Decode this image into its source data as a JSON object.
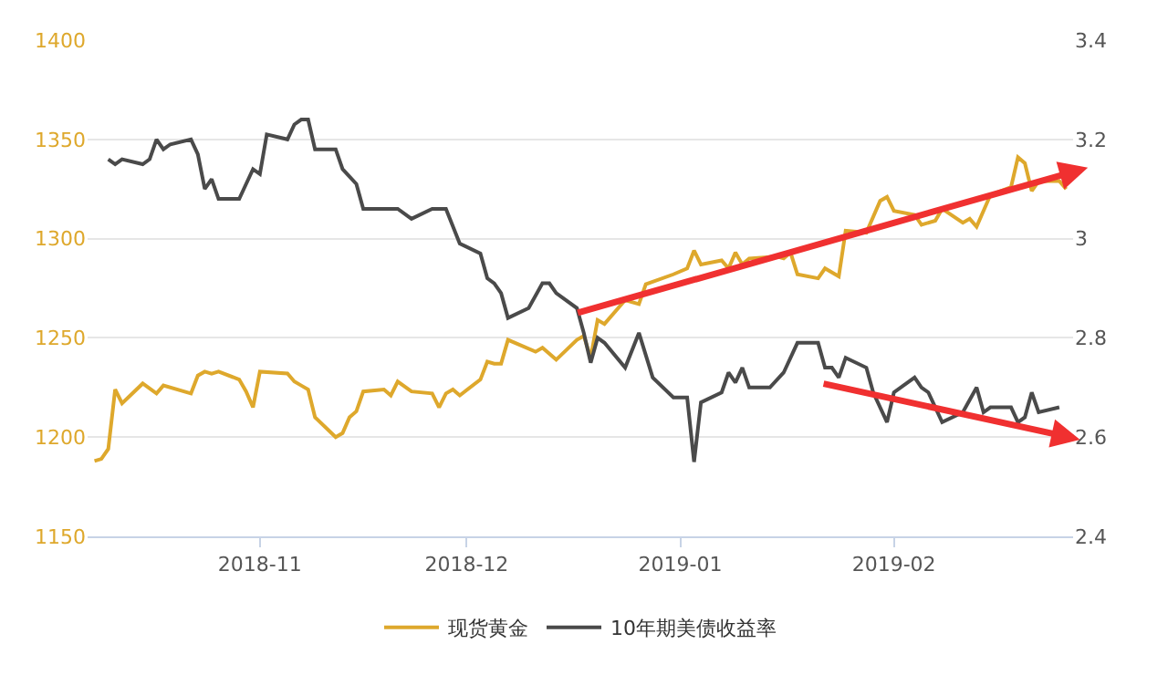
{
  "chart_data": {
    "type": "line",
    "series": [
      {
        "name": "现货黄金",
        "color": "#dea82c",
        "x": [
          "2018-10-08",
          "2018-10-09",
          "2018-10-10",
          "2018-10-11",
          "2018-10-12",
          "2018-10-15",
          "2018-10-17",
          "2018-10-18",
          "2018-10-22",
          "2018-10-23",
          "2018-10-24",
          "2018-10-25",
          "2018-10-26",
          "2018-10-29",
          "2018-10-30",
          "2018-10-31",
          "2018-11-01",
          "2018-11-05",
          "2018-11-06",
          "2018-11-07",
          "2018-11-08",
          "2018-11-09",
          "2018-11-12",
          "2018-11-13",
          "2018-11-14",
          "2018-11-15",
          "2018-11-16",
          "2018-11-19",
          "2018-11-20",
          "2018-11-21",
          "2018-11-23",
          "2018-11-26",
          "2018-11-27",
          "2018-11-28",
          "2018-11-29",
          "2018-11-30",
          "2018-12-03",
          "2018-12-04",
          "2018-12-05",
          "2018-12-06",
          "2018-12-07",
          "2018-12-11",
          "2018-12-12",
          "2018-12-14",
          "2018-12-17",
          "2018-12-18",
          "2018-12-19",
          "2018-12-20",
          "2018-12-21",
          "2018-12-24",
          "2018-12-26",
          "2018-12-27",
          "2018-12-31",
          "2019-01-02",
          "2019-01-03",
          "2019-01-04",
          "2019-01-07",
          "2019-01-08",
          "2019-01-09",
          "2019-01-10",
          "2019-01-11",
          "2019-01-15",
          "2019-01-16",
          "2019-01-17",
          "2019-01-18",
          "2019-01-21",
          "2019-01-22",
          "2019-01-24",
          "2019-01-25",
          "2019-01-28",
          "2019-01-30",
          "2019-01-31",
          "2019-02-01",
          "2019-02-04",
          "2019-02-05",
          "2019-02-07",
          "2019-02-08",
          "2019-02-11",
          "2019-02-12",
          "2019-02-13",
          "2019-02-15",
          "2019-02-18",
          "2019-02-19",
          "2019-02-20",
          "2019-02-21",
          "2019-02-22",
          "2019-02-25",
          "2019-02-26"
        ],
        "values": [
          1188,
          1189,
          1194,
          1224,
          1217,
          1227,
          1222,
          1226,
          1222,
          1231,
          1233,
          1232,
          1233,
          1229,
          1223,
          1215,
          1233,
          1232,
          1228,
          1226,
          1224,
          1210,
          1200,
          1202,
          1210,
          1213,
          1223,
          1224,
          1221,
          1228,
          1223,
          1222,
          1215,
          1222,
          1224,
          1221,
          1229,
          1238,
          1237,
          1237,
          1249,
          1243,
          1245,
          1239,
          1249,
          1251,
          1240,
          1259,
          1257,
          1269,
          1267,
          1277,
          1282,
          1285,
          1294,
          1287,
          1289,
          1285,
          1293,
          1287,
          1290,
          1291,
          1290,
          1293,
          1282,
          1280,
          1285,
          1281,
          1304,
          1303,
          1319,
          1321,
          1314,
          1312,
          1307,
          1309,
          1315,
          1308,
          1310,
          1306,
          1322,
          1326,
          1341,
          1338,
          1324,
          1329,
          1329,
          1325
        ]
      },
      {
        "name": "10年期美债收益率",
        "color": "#4a4a4a",
        "axis": "y2",
        "x": [
          "2018-10-10",
          "2018-10-11",
          "2018-10-12",
          "2018-10-15",
          "2018-10-16",
          "2018-10-17",
          "2018-10-18",
          "2018-10-19",
          "2018-10-22",
          "2018-10-23",
          "2018-10-24",
          "2018-10-25",
          "2018-10-26",
          "2018-10-29",
          "2018-10-30",
          "2018-10-31",
          "2018-11-01",
          "2018-11-02",
          "2018-11-05",
          "2018-11-06",
          "2018-11-07",
          "2018-11-08",
          "2018-11-09",
          "2018-11-12",
          "2018-11-13",
          "2018-11-15",
          "2018-11-16",
          "2018-11-21",
          "2018-11-23",
          "2018-11-26",
          "2018-11-28",
          "2018-11-30",
          "2018-12-03",
          "2018-12-04",
          "2018-12-05",
          "2018-12-06",
          "2018-12-07",
          "2018-12-10",
          "2018-12-12",
          "2018-12-13",
          "2018-12-14",
          "2018-12-17",
          "2018-12-18",
          "2018-12-19",
          "2018-12-20",
          "2018-12-21",
          "2018-12-24",
          "2018-12-26",
          "2018-12-28",
          "2018-12-31",
          "2019-01-02",
          "2019-01-03",
          "2019-01-04",
          "2019-01-07",
          "2019-01-08",
          "2019-01-09",
          "2019-01-10",
          "2019-01-11",
          "2019-01-14",
          "2019-01-16",
          "2019-01-18",
          "2019-01-21",
          "2019-01-22",
          "2019-01-23",
          "2019-01-24",
          "2019-01-25",
          "2019-01-28",
          "2019-01-29",
          "2019-01-31",
          "2019-02-01",
          "2019-02-04",
          "2019-02-05",
          "2019-02-06",
          "2019-02-08",
          "2019-02-11",
          "2019-02-13",
          "2019-02-14",
          "2019-02-15",
          "2019-02-18",
          "2019-02-19",
          "2019-02-20",
          "2019-02-21",
          "2019-02-22",
          "2019-02-25"
        ],
        "values": [
          3.16,
          3.15,
          3.16,
          3.15,
          3.16,
          3.2,
          3.18,
          3.19,
          3.2,
          3.17,
          3.1,
          3.12,
          3.08,
          3.08,
          3.11,
          3.14,
          3.13,
          3.21,
          3.2,
          3.23,
          3.24,
          3.24,
          3.18,
          3.18,
          3.14,
          3.11,
          3.06,
          3.06,
          3.04,
          3.06,
          3.06,
          2.99,
          2.97,
          2.92,
          2.91,
          2.89,
          2.84,
          2.86,
          2.91,
          2.91,
          2.89,
          2.86,
          2.81,
          2.75,
          2.8,
          2.79,
          2.74,
          2.81,
          2.72,
          2.68,
          2.68,
          2.55,
          2.67,
          2.69,
          2.73,
          2.71,
          2.74,
          2.7,
          2.7,
          2.73,
          2.79,
          2.79,
          2.74,
          2.74,
          2.72,
          2.76,
          2.74,
          2.69,
          2.63,
          2.69,
          2.72,
          2.7,
          2.69,
          2.63,
          2.65,
          2.7,
          2.65,
          2.66,
          2.66,
          2.63,
          2.64,
          2.69,
          2.65,
          2.66
        ]
      }
    ],
    "xlim": [
      "2018-10-07",
      "2019-02-27"
    ],
    "xticks": [
      {
        "value": "2018-11-01",
        "label": "2018-11"
      },
      {
        "value": "2018-12-01",
        "label": "2018-12"
      },
      {
        "value": "2019-01-01",
        "label": "2019-01"
      },
      {
        "value": "2019-02-01",
        "label": "2019-02"
      }
    ],
    "ylim": [
      1150,
      1400
    ],
    "yticks": [
      1150,
      1200,
      1250,
      1300,
      1350,
      1400
    ],
    "y2lim": [
      2.4,
      3.4
    ],
    "y2ticks": [
      2.4,
      2.6,
      2.8,
      3,
      3.2,
      3.4
    ],
    "grid": "y",
    "legend": "bottom",
    "marker": "none",
    "line_style": "solid"
  }
}
